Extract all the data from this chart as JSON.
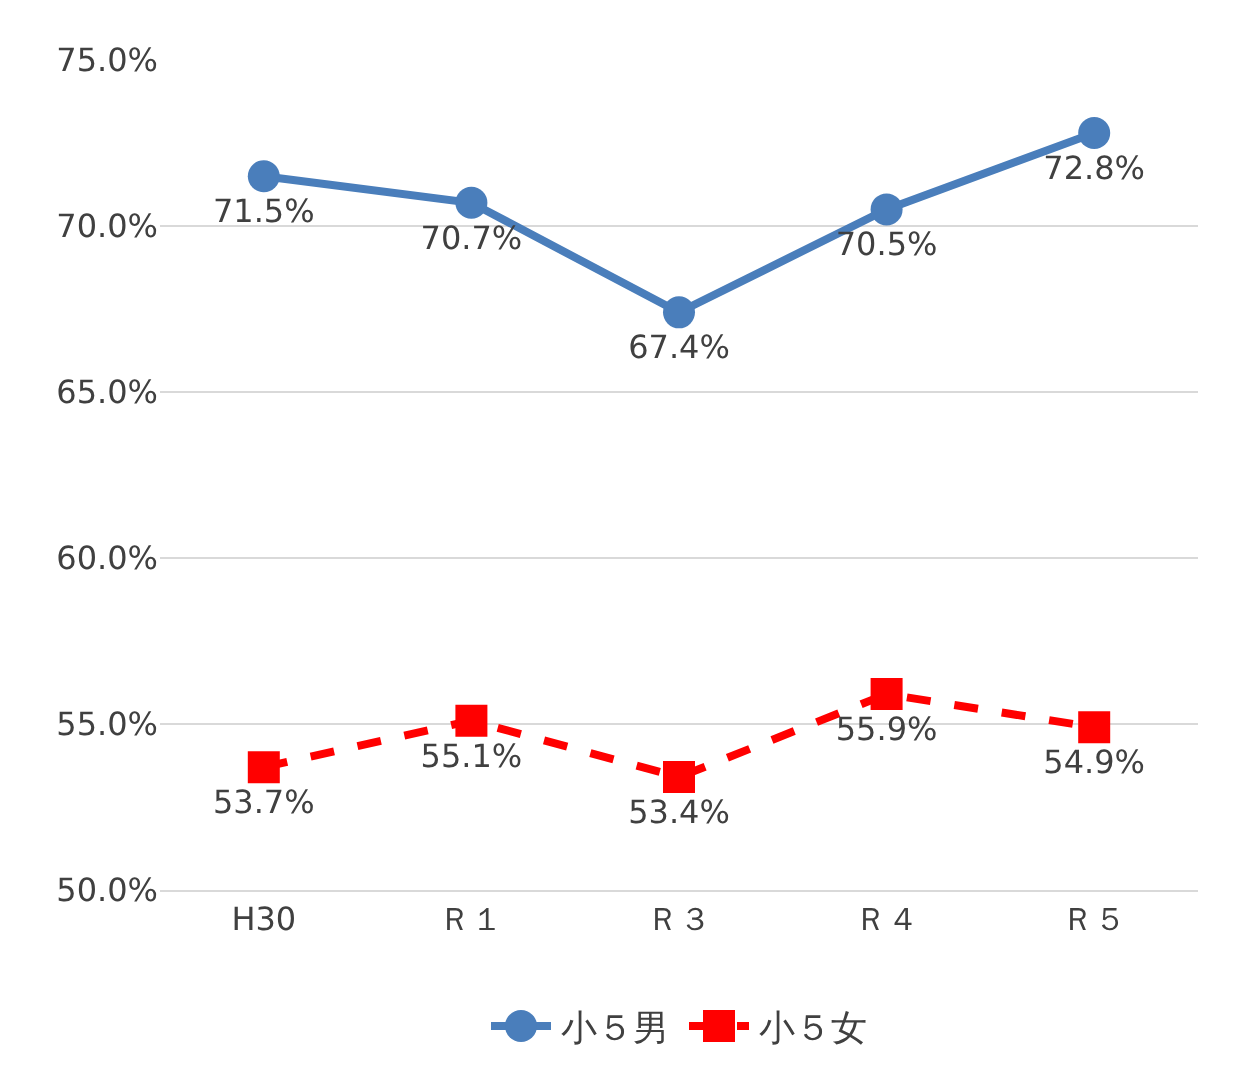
{
  "chart_data": {
    "type": "line",
    "categories": [
      "H30",
      "Ｒ１",
      "Ｒ３",
      "Ｒ４",
      "Ｒ５"
    ],
    "series": [
      {
        "name": "小５男",
        "color": "#4a7ebb",
        "values": [
          71.5,
          70.7,
          67.4,
          70.5,
          72.8
        ],
        "marker": "circle",
        "line_style": "solid",
        "value_labels": [
          "71.5%",
          "70.7%",
          "67.4%",
          "70.5%",
          "72.8%"
        ]
      },
      {
        "name": "小５女",
        "color": "#ff0000",
        "values": [
          53.7,
          55.1,
          53.4,
          55.9,
          54.9
        ],
        "marker": "square",
        "line_style": "dashed",
        "value_labels": [
          "53.7%",
          "55.1%",
          "53.4%",
          "55.9%",
          "54.9%"
        ]
      }
    ],
    "ylim": [
      50,
      75
    ],
    "yticks": [
      {
        "value": 50,
        "label": "50.0%"
      },
      {
        "value": 55,
        "label": "55.0%"
      },
      {
        "value": 60,
        "label": "60.0%"
      },
      {
        "value": 65,
        "label": "65.0%"
      },
      {
        "value": 70,
        "label": "70.0%"
      },
      {
        "value": 75,
        "label": "75.0%"
      }
    ],
    "grid": "y",
    "legend": "bottom"
  }
}
